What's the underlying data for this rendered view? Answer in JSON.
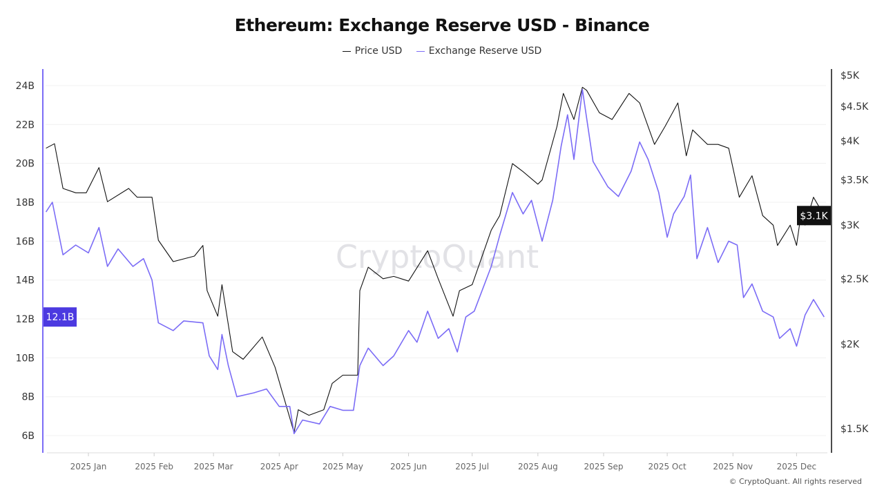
{
  "chart_data": {
    "type": "line",
    "title": "Ethereum: Exchange Reserve USD - Binance",
    "legend_placement": "top",
    "grid": true,
    "x_ticks": [
      "2025 Jan",
      "2025 Feb",
      "2025 Mar",
      "2025 Apr",
      "2025 May",
      "2025 Jun",
      "2025 Jul",
      "2025 Aug",
      "2025 Sep",
      "2025 Oct",
      "2025 Nov",
      "2025 Dec"
    ],
    "x_tick_dates": [
      "2025-01-01",
      "2025-02-01",
      "2025-03-01",
      "2025-04-01",
      "2025-05-01",
      "2025-06-01",
      "2025-07-01",
      "2025-08-01",
      "2025-09-01",
      "2025-10-01",
      "2025-11-01",
      "2025-12-01"
    ],
    "left_axis": {
      "ticks": [
        "6B",
        "8B",
        "10B",
        "12B",
        "14B",
        "16B",
        "18B",
        "20B",
        "22B",
        "24B"
      ],
      "tick_values": [
        6,
        8,
        10,
        12,
        14,
        16,
        18,
        20,
        22,
        24
      ],
      "unit": "B",
      "current_label": "12.1B",
      "color": "#7b6cf6"
    },
    "right_axis": {
      "scale": "log",
      "ticks": [
        "$1.5K",
        "$2K",
        "$2.5K",
        "$3K",
        "$3.5K",
        "$4K",
        "$4.5K",
        "$5K"
      ],
      "tick_values": [
        1500,
        2000,
        2500,
        3000,
        3500,
        4000,
        4500,
        5000
      ],
      "current_label": "$3.1K",
      "color": "#111111"
    },
    "series": [
      {
        "name": "Price USD",
        "axis": "right",
        "color": "#111111",
        "points": [
          [
            "2024-12-12",
            3900
          ],
          [
            "2024-12-16",
            3960
          ],
          [
            "2024-12-20",
            3400
          ],
          [
            "2024-12-26",
            3350
          ],
          [
            "2024-12-31",
            3350
          ],
          [
            "2025-01-06",
            3650
          ],
          [
            "2025-01-10",
            3250
          ],
          [
            "2025-01-20",
            3400
          ],
          [
            "2025-01-24",
            3300
          ],
          [
            "2025-01-31",
            3300
          ],
          [
            "2025-02-03",
            2850
          ],
          [
            "2025-02-10",
            2650
          ],
          [
            "2025-02-20",
            2700
          ],
          [
            "2025-02-24",
            2800
          ],
          [
            "2025-02-26",
            2400
          ],
          [
            "2025-03-03",
            2200
          ],
          [
            "2025-03-05",
            2450
          ],
          [
            "2025-03-10",
            1950
          ],
          [
            "2025-03-15",
            1900
          ],
          [
            "2025-03-24",
            2050
          ],
          [
            "2025-03-30",
            1850
          ],
          [
            "2025-04-08",
            1480
          ],
          [
            "2025-04-10",
            1600
          ],
          [
            "2025-04-15",
            1570
          ],
          [
            "2025-04-22",
            1600
          ],
          [
            "2025-04-26",
            1750
          ],
          [
            "2025-05-01",
            1800
          ],
          [
            "2025-05-08",
            1800
          ],
          [
            "2025-05-09",
            2400
          ],
          [
            "2025-05-13",
            2600
          ],
          [
            "2025-05-20",
            2500
          ],
          [
            "2025-05-25",
            2520
          ],
          [
            "2025-06-01",
            2480
          ],
          [
            "2025-06-10",
            2750
          ],
          [
            "2025-06-15",
            2500
          ],
          [
            "2025-06-22",
            2200
          ],
          [
            "2025-06-25",
            2400
          ],
          [
            "2025-07-01",
            2450
          ],
          [
            "2025-07-10",
            2950
          ],
          [
            "2025-07-14",
            3100
          ],
          [
            "2025-07-20",
            3700
          ],
          [
            "2025-07-25",
            3600
          ],
          [
            "2025-08-01",
            3450
          ],
          [
            "2025-08-03",
            3500
          ],
          [
            "2025-08-10",
            4200
          ],
          [
            "2025-08-13",
            4700
          ],
          [
            "2025-08-18",
            4300
          ],
          [
            "2025-08-22",
            4800
          ],
          [
            "2025-08-24",
            4750
          ],
          [
            "2025-08-30",
            4400
          ],
          [
            "2025-09-05",
            4300
          ],
          [
            "2025-09-13",
            4700
          ],
          [
            "2025-09-18",
            4550
          ],
          [
            "2025-09-25",
            3950
          ],
          [
            "2025-09-30",
            4200
          ],
          [
            "2025-10-06",
            4550
          ],
          [
            "2025-10-10",
            3800
          ],
          [
            "2025-10-13",
            4150
          ],
          [
            "2025-10-20",
            3950
          ],
          [
            "2025-10-25",
            3950
          ],
          [
            "2025-10-30",
            3900
          ],
          [
            "2025-11-04",
            3300
          ],
          [
            "2025-11-10",
            3550
          ],
          [
            "2025-11-15",
            3100
          ],
          [
            "2025-11-20",
            3000
          ],
          [
            "2025-11-22",
            2800
          ],
          [
            "2025-11-28",
            3000
          ],
          [
            "2025-12-01",
            2800
          ],
          [
            "2025-12-03",
            3100
          ],
          [
            "2025-12-05",
            3000
          ],
          [
            "2025-12-09",
            3300
          ],
          [
            "2025-12-14",
            3100
          ]
        ]
      },
      {
        "name": "Exchange Reserve USD",
        "axis": "left",
        "color": "#7b6cf6",
        "points": [
          [
            "2024-12-12",
            17.5
          ],
          [
            "2024-12-15",
            18.0
          ],
          [
            "2024-12-20",
            15.3
          ],
          [
            "2024-12-26",
            15.8
          ],
          [
            "2025-01-01",
            15.4
          ],
          [
            "2025-01-06",
            16.7
          ],
          [
            "2025-01-10",
            14.7
          ],
          [
            "2025-01-15",
            15.6
          ],
          [
            "2025-01-22",
            14.7
          ],
          [
            "2025-01-27",
            15.1
          ],
          [
            "2025-01-31",
            14.0
          ],
          [
            "2025-02-03",
            11.8
          ],
          [
            "2025-02-10",
            11.4
          ],
          [
            "2025-02-15",
            11.9
          ],
          [
            "2025-02-24",
            11.8
          ],
          [
            "2025-02-27",
            10.1
          ],
          [
            "2025-03-03",
            9.4
          ],
          [
            "2025-03-05",
            11.2
          ],
          [
            "2025-03-08",
            9.6
          ],
          [
            "2025-03-12",
            8.0
          ],
          [
            "2025-03-20",
            8.2
          ],
          [
            "2025-03-26",
            8.4
          ],
          [
            "2025-04-01",
            7.5
          ],
          [
            "2025-04-06",
            7.5
          ],
          [
            "2025-04-08",
            6.1
          ],
          [
            "2025-04-12",
            6.8
          ],
          [
            "2025-04-20",
            6.6
          ],
          [
            "2025-04-25",
            7.5
          ],
          [
            "2025-05-01",
            7.3
          ],
          [
            "2025-05-06",
            7.3
          ],
          [
            "2025-05-09",
            9.6
          ],
          [
            "2025-05-13",
            10.5
          ],
          [
            "2025-05-20",
            9.6
          ],
          [
            "2025-05-25",
            10.1
          ],
          [
            "2025-06-01",
            11.4
          ],
          [
            "2025-06-05",
            10.8
          ],
          [
            "2025-06-10",
            12.4
          ],
          [
            "2025-06-15",
            11.0
          ],
          [
            "2025-06-20",
            11.5
          ],
          [
            "2025-06-24",
            10.3
          ],
          [
            "2025-06-28",
            12.1
          ],
          [
            "2025-07-02",
            12.4
          ],
          [
            "2025-07-10",
            14.7
          ],
          [
            "2025-07-14",
            16.3
          ],
          [
            "2025-07-20",
            18.5
          ],
          [
            "2025-07-25",
            17.4
          ],
          [
            "2025-07-29",
            18.1
          ],
          [
            "2025-08-03",
            16.0
          ],
          [
            "2025-08-08",
            18.1
          ],
          [
            "2025-08-12",
            20.9
          ],
          [
            "2025-08-15",
            22.5
          ],
          [
            "2025-08-18",
            20.2
          ],
          [
            "2025-08-22",
            23.8
          ],
          [
            "2025-08-27",
            20.1
          ],
          [
            "2025-09-03",
            18.8
          ],
          [
            "2025-09-08",
            18.3
          ],
          [
            "2025-09-14",
            19.6
          ],
          [
            "2025-09-18",
            21.1
          ],
          [
            "2025-09-22",
            20.2
          ],
          [
            "2025-09-27",
            18.5
          ],
          [
            "2025-10-01",
            16.2
          ],
          [
            "2025-10-04",
            17.4
          ],
          [
            "2025-10-09",
            18.3
          ],
          [
            "2025-10-12",
            19.4
          ],
          [
            "2025-10-15",
            15.1
          ],
          [
            "2025-10-20",
            16.7
          ],
          [
            "2025-10-25",
            14.9
          ],
          [
            "2025-10-30",
            16.0
          ],
          [
            "2025-11-03",
            15.8
          ],
          [
            "2025-11-06",
            13.1
          ],
          [
            "2025-11-10",
            13.8
          ],
          [
            "2025-11-15",
            12.4
          ],
          [
            "2025-11-20",
            12.1
          ],
          [
            "2025-11-23",
            11.0
          ],
          [
            "2025-11-28",
            11.5
          ],
          [
            "2025-12-01",
            10.6
          ],
          [
            "2025-12-05",
            12.2
          ],
          [
            "2025-12-09",
            13.0
          ],
          [
            "2025-12-14",
            12.1
          ]
        ]
      }
    ]
  },
  "watermark": "CryptoQuant",
  "copyright": "© CryptoQuant. All rights reserved"
}
